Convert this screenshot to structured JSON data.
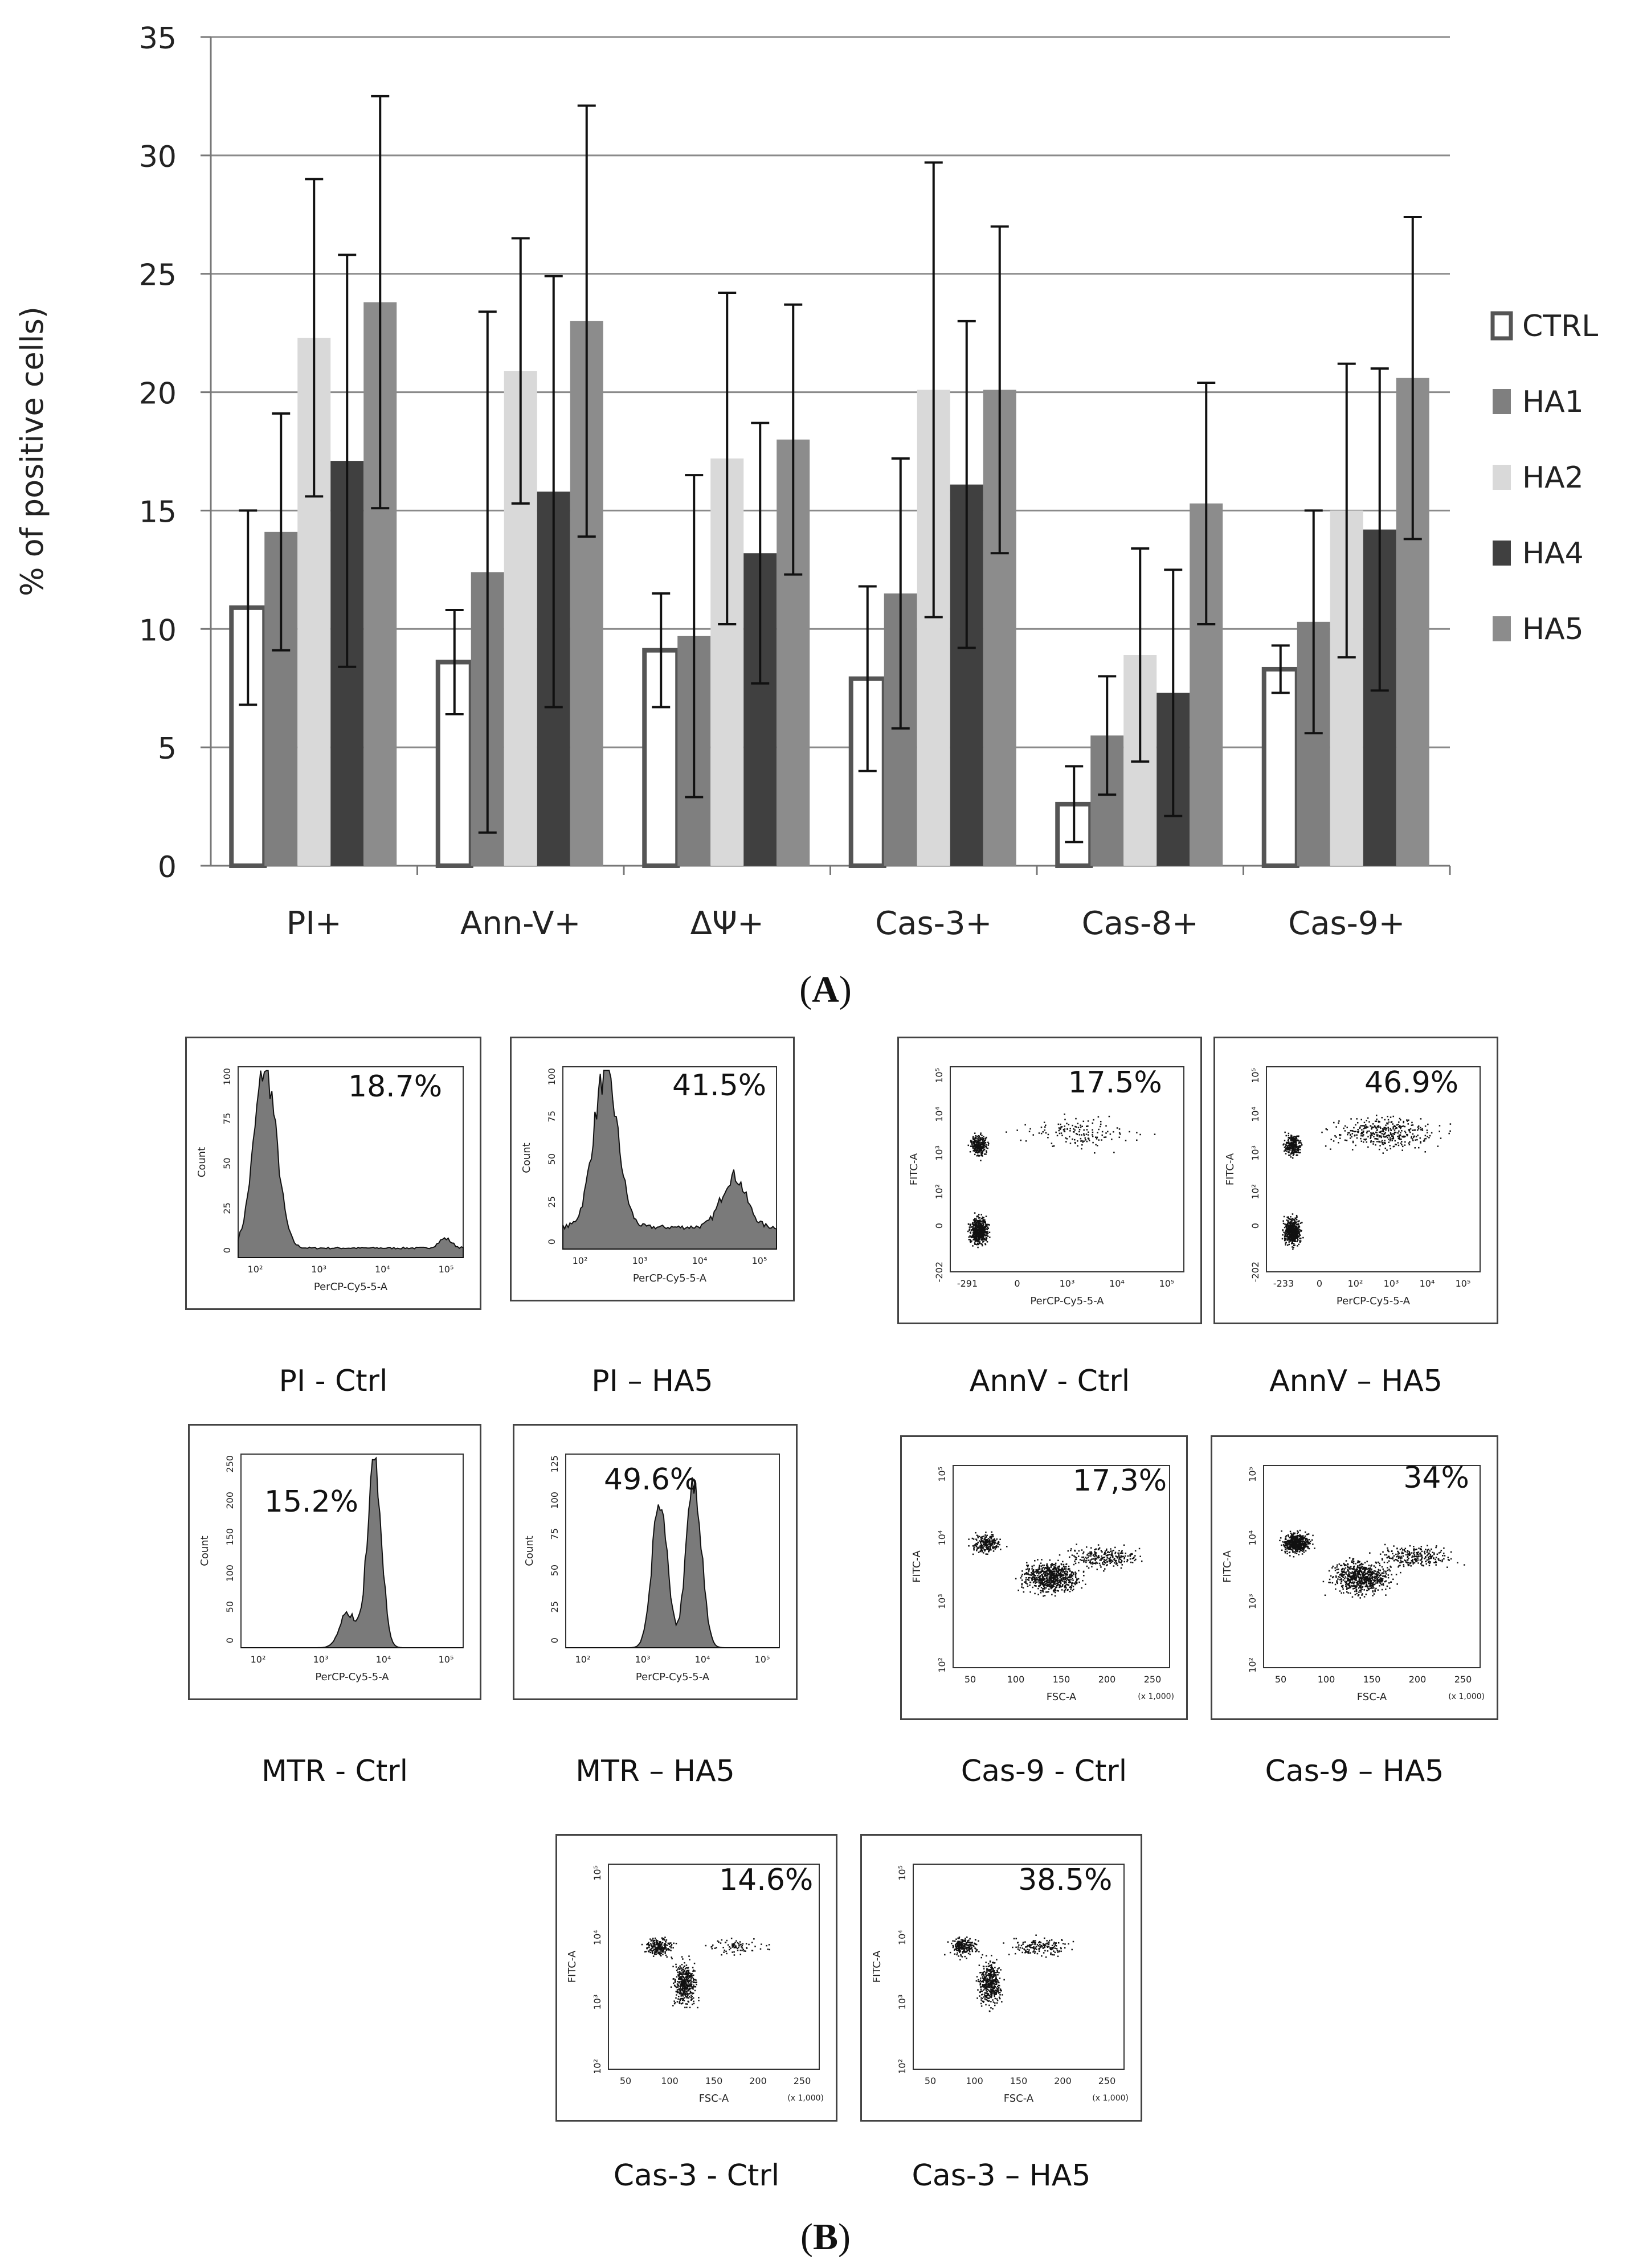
{
  "chart_data": {
    "type": "bar",
    "ylabel": "% of positive cells)",
    "ylim": [
      0,
      35
    ],
    "yticks": [
      0,
      5,
      10,
      15,
      20,
      25,
      30,
      35
    ],
    "grid": true,
    "legend_position": "right",
    "categories": [
      "PI+",
      "Ann-V+",
      "ΔΨ+",
      "Cas-3+",
      "Cas-8+",
      "Cas-9+"
    ],
    "series": [
      {
        "name": "CTRL",
        "color": "#ffffff",
        "stroke": "#555555",
        "values": [
          10.9,
          8.6,
          9.1,
          7.9,
          2.6,
          8.3
        ],
        "errors": [
          4.1,
          2.2,
          2.4,
          3.9,
          1.6,
          1.0
        ]
      },
      {
        "name": "HA1",
        "color": "#7f7f7f",
        "values": [
          14.1,
          12.4,
          9.7,
          11.5,
          5.5,
          10.3
        ],
        "errors": [
          5.0,
          11.0,
          6.8,
          5.7,
          2.5,
          4.7
        ]
      },
      {
        "name": "HA2",
        "color": "#d9d9d9",
        "values": [
          22.3,
          20.9,
          17.2,
          20.1,
          8.9,
          15.0
        ],
        "errors": [
          6.7,
          5.6,
          7.0,
          9.6,
          4.5,
          6.2
        ]
      },
      {
        "name": "HA4",
        "color": "#404040",
        "values": [
          17.1,
          15.8,
          13.2,
          16.1,
          7.3,
          14.2
        ],
        "errors": [
          8.7,
          9.1,
          5.5,
          6.9,
          5.2,
          6.8
        ]
      },
      {
        "name": "HA5",
        "color": "#8c8c8c",
        "values": [
          23.8,
          23.0,
          18.0,
          20.1,
          15.3,
          20.6
        ],
        "errors": [
          8.7,
          9.1,
          5.7,
          6.9,
          5.1,
          6.8
        ]
      }
    ]
  },
  "captions": {
    "panel_a": "A",
    "panel_b": "B"
  },
  "flow_panels": [
    {
      "kind": "hist-wide",
      "percent": "18.7%",
      "label": "PI - Ctrl",
      "xlabel": "PerCP-Cy5-5-A",
      "ylabel": "Count",
      "xticks": [
        "10²",
        "10³",
        "10⁴",
        "10⁵"
      ],
      "yticks": [
        "0",
        "25",
        "50",
        "75",
        "100"
      ]
    },
    {
      "kind": "hist-wide",
      "percent": "41.5%",
      "label": "PI – HA5",
      "xlabel": "PerCP-Cy5-5-A",
      "ylabel": "Count",
      "xticks": [
        "10²",
        "10³",
        "10⁴",
        "10⁵"
      ],
      "yticks": [
        "0",
        "25",
        "50",
        "75",
        "100"
      ]
    },
    {
      "kind": "scatter-ann",
      "percent": "17.5%",
      "label": "AnnV - Ctrl",
      "xlabel": "PerCP-Cy5-5-A",
      "ylabel": "FITC-A",
      "xticks": [
        "-291",
        "0",
        "10³",
        "10⁴",
        "10⁵"
      ],
      "yticks": [
        "-202",
        "0",
        "10²",
        "10³",
        "10⁴",
        "10⁵"
      ]
    },
    {
      "kind": "scatter-ann",
      "percent": "46.9%",
      "label": "AnnV – HA5",
      "xlabel": "PerCP-Cy5-5-A",
      "ylabel": "FITC-A",
      "xticks": [
        "-233",
        "0",
        "10²",
        "10³",
        "10⁴",
        "10⁵"
      ],
      "yticks": [
        "-202",
        "0",
        "10²",
        "10³",
        "10⁴",
        "10⁵"
      ]
    },
    {
      "kind": "hist-peak",
      "percent": "15.2%",
      "label": "MTR - Ctrl",
      "xlabel": "PerCP-Cy5-5-A",
      "ylabel": "Count",
      "xticks": [
        "10²",
        "10³",
        "10⁴",
        "10⁵"
      ],
      "yticks": [
        "0",
        "50",
        "100",
        "150",
        "200",
        "250"
      ]
    },
    {
      "kind": "hist-double",
      "percent": "49.6%",
      "label": "MTR – HA5",
      "xlabel": "PerCP-Cy5-5-A",
      "ylabel": "Count",
      "xticks": [
        "10²",
        "10³",
        "10⁴",
        "10⁵"
      ],
      "yticks": [
        "0",
        "25",
        "50",
        "75",
        "100",
        "125"
      ]
    },
    {
      "kind": "scatter-fsc",
      "percent": "17,3%",
      "label": "Cas-9 - Ctrl",
      "xlabel": "FSC-A",
      "ylabel": "FITC-A",
      "xticks": [
        "50",
        "100",
        "150",
        "200",
        "250"
      ],
      "yticks": [
        "10²",
        "10³",
        "10⁴",
        "10⁵"
      ],
      "scale_note": "(x 1,000)"
    },
    {
      "kind": "scatter-fsc",
      "percent": "34%",
      "label": "Cas-9 – HA5",
      "xlabel": "FSC-A",
      "ylabel": "FITC-A",
      "xticks": [
        "50",
        "100",
        "150",
        "200",
        "250"
      ],
      "yticks": [
        "10²",
        "10³",
        "10⁴",
        "10⁵"
      ],
      "scale_note": "(x 1,000)"
    },
    {
      "kind": "scatter-cas3",
      "percent": "14.6%",
      "label": "Cas-3 - Ctrl",
      "xlabel": "FSC-A",
      "ylabel": "FITC-A",
      "xticks": [
        "50",
        "100",
        "150",
        "200",
        "250"
      ],
      "yticks": [
        "10²",
        "10³",
        "10⁴",
        "10⁵"
      ],
      "scale_note": "(x 1,000)"
    },
    {
      "kind": "scatter-cas3",
      "percent": "38.5%",
      "label": "Cas-3 – HA5",
      "xlabel": "FSC-A",
      "ylabel": "FITC-A",
      "xticks": [
        "50",
        "100",
        "150",
        "200",
        "250"
      ],
      "yticks": [
        "10²",
        "10³",
        "10⁴",
        "10⁵"
      ],
      "scale_note": "(x 1,000)"
    }
  ]
}
